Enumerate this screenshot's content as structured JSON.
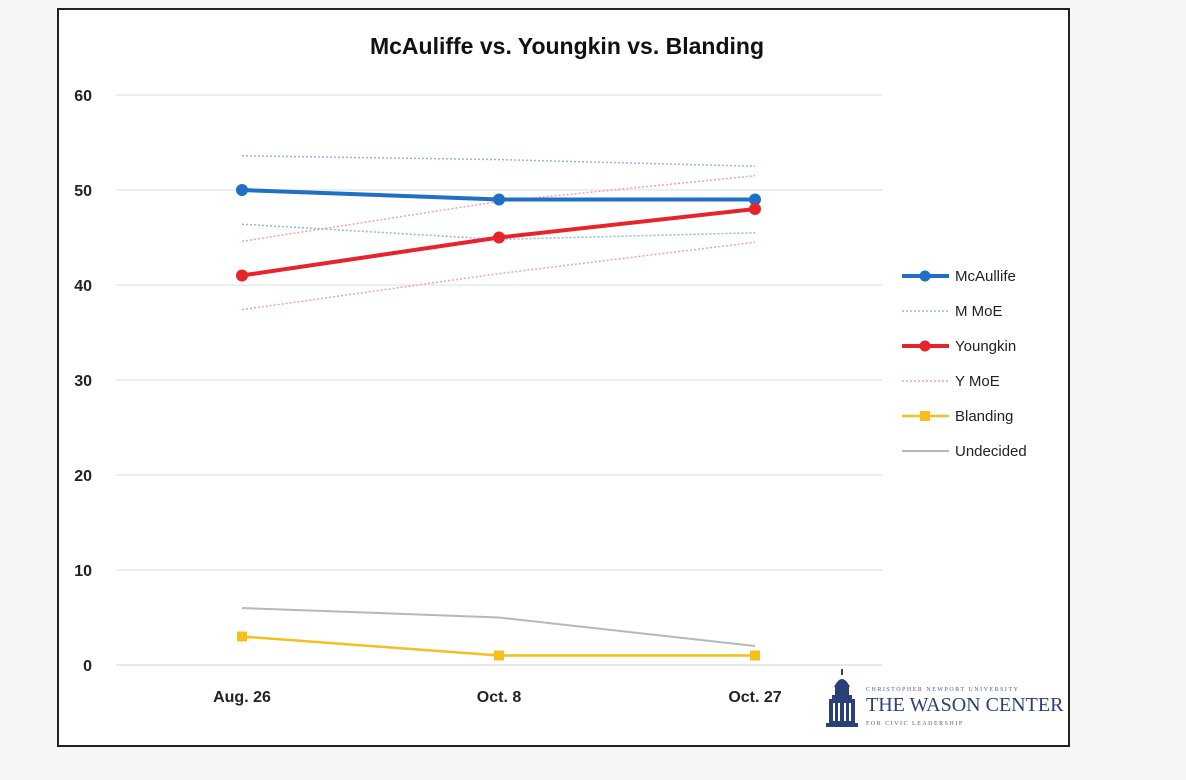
{
  "chart_data": {
    "type": "line",
    "title": "McAuliffe vs. Youngkin vs. Blanding",
    "categories": [
      "Aug. 26",
      "Oct. 8",
      "Oct. 27"
    ],
    "ylim": [
      0,
      60
    ],
    "yticks": [
      0,
      10,
      20,
      30,
      40,
      50,
      60
    ],
    "grid": true,
    "legend_position": "right",
    "series": [
      {
        "name": "McAullife",
        "values": [
          50,
          49,
          49
        ],
        "color": "#1f6fc5",
        "style": "solid",
        "marker": "circle",
        "width": 4
      },
      {
        "name": "M MoE",
        "values": [
          53.6,
          53.2,
          52.5
        ],
        "color": "#8fb8e6",
        "style": "dotted",
        "marker": "none",
        "width": 1.5
      },
      {
        "name": "M MoE",
        "values": [
          46.4,
          44.8,
          45.5
        ],
        "color": "#8fb8e6",
        "style": "dotted",
        "marker": "none",
        "width": 1.5,
        "legend": false
      },
      {
        "name": "Youngkin",
        "values": [
          41,
          45,
          48
        ],
        "color": "#e8242b",
        "style": "solid",
        "marker": "circle",
        "width": 4
      },
      {
        "name": "Y MoE",
        "values": [
          44.6,
          48.8,
          51.5
        ],
        "color": "#f3a1a5",
        "style": "dotted",
        "marker": "none",
        "width": 1.5
      },
      {
        "name": "Y MoE",
        "values": [
          37.4,
          41.2,
          44.5
        ],
        "color": "#f3a1a5",
        "style": "dotted",
        "marker": "none",
        "width": 1.5,
        "legend": false
      },
      {
        "name": "Blanding",
        "values": [
          3,
          1,
          1
        ],
        "color": "#f4bf1f",
        "style": "solid",
        "marker": "square",
        "width": 2.5
      },
      {
        "name": "Undecided",
        "values": [
          6,
          5,
          2
        ],
        "color": "#b8b8b8",
        "style": "solid",
        "marker": "none",
        "width": 2
      }
    ]
  },
  "logo": {
    "top_line": "CHRISTOPHER NEWPORT UNIVERSITY",
    "name": "THE WASON CENTER",
    "bottom_line": "FOR CIVIC LEADERSHIP"
  }
}
